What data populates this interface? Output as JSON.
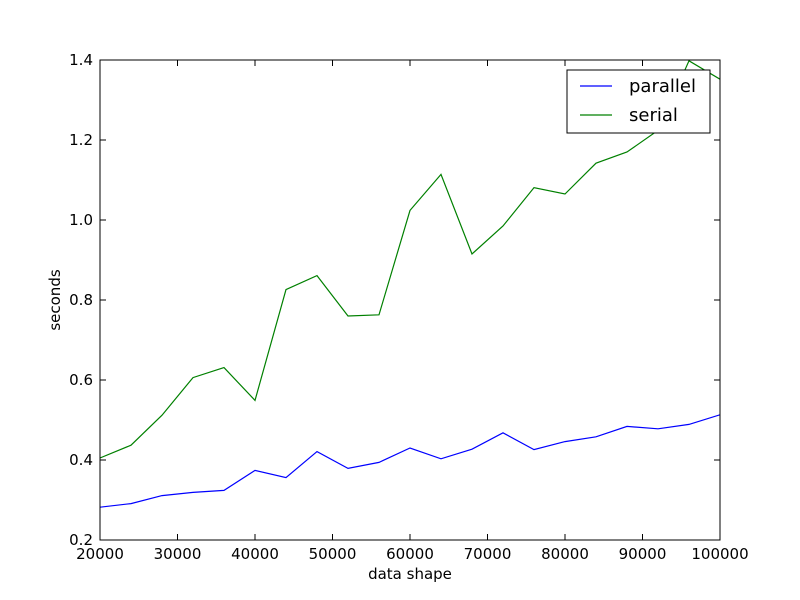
{
  "chart_data": {
    "type": "line",
    "title": "",
    "xlabel": "data shape",
    "ylabel": "seconds",
    "xlim": [
      20000,
      100000
    ],
    "ylim": [
      0.2,
      1.4
    ],
    "x_ticks": [
      20000,
      30000,
      40000,
      50000,
      60000,
      70000,
      80000,
      90000,
      100000
    ],
    "x_tick_labels": [
      "20000",
      "30000",
      "40000",
      "50000",
      "60000",
      "70000",
      "80000",
      "90000",
      "100000"
    ],
    "y_ticks": [
      0.2,
      0.4,
      0.6,
      0.8,
      1.0,
      1.2,
      1.4
    ],
    "y_tick_labels": [
      "0.2",
      "0.4",
      "0.6",
      "0.8",
      "1.0",
      "1.2",
      "1.4"
    ],
    "grid": false,
    "legend_position": "top-right",
    "x": [
      20000,
      24000,
      28000,
      32000,
      36000,
      40000,
      44000,
      48000,
      52000,
      56000,
      60000,
      64000,
      68000,
      72000,
      76000,
      80000,
      84000,
      88000,
      92000,
      96000,
      100000
    ],
    "series": [
      {
        "name": "parallel",
        "color": "#0000ff",
        "values": [
          0.282,
          0.291,
          0.311,
          0.319,
          0.324,
          0.374,
          0.356,
          0.421,
          0.379,
          0.394,
          0.43,
          0.403,
          0.427,
          0.468,
          0.426,
          0.446,
          0.458,
          0.484,
          0.478,
          0.489,
          0.513
        ]
      },
      {
        "name": "serial",
        "color": "#008000",
        "values": [
          0.405,
          0.437,
          0.512,
          0.606,
          0.631,
          0.549,
          0.826,
          0.861,
          0.76,
          0.763,
          1.024,
          1.114,
          0.915,
          0.985,
          1.081,
          1.065,
          1.142,
          1.17,
          1.224,
          1.398,
          1.352
        ]
      }
    ]
  }
}
